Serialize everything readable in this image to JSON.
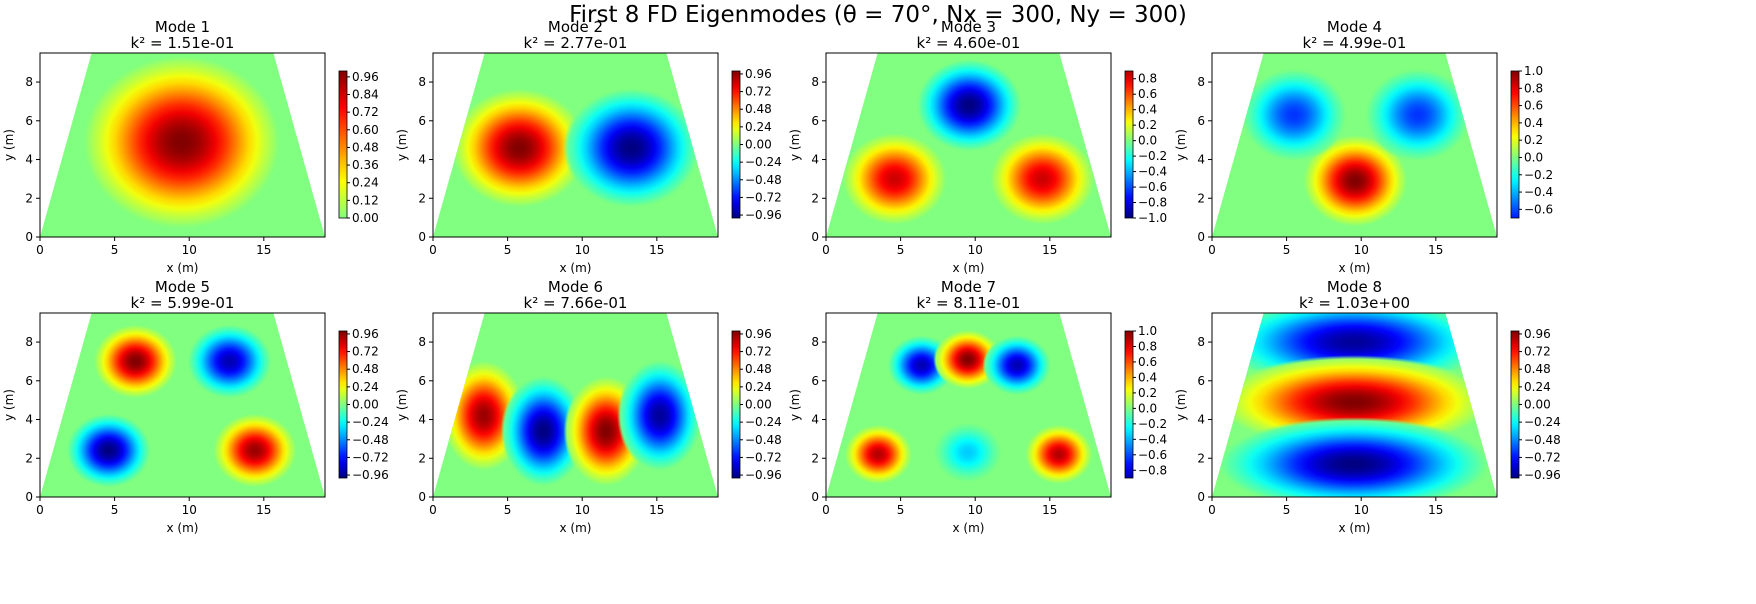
{
  "figure": {
    "suptitle": "First 8 FD Eigenmodes (θ = 70°, Nx = 300, Ny = 300)"
  },
  "chart_data": [
    {
      "type": "heatmap",
      "title": "Mode 1",
      "subtitle": "k² = 1.51e-01",
      "xlabel": "x (m)",
      "ylabel": "y (m)",
      "xlim": [
        0,
        19.1
      ],
      "ylim": [
        0,
        9.5
      ],
      "xticks": [
        "0",
        "5",
        "10",
        "15"
      ],
      "yticks": [
        "0",
        "2",
        "4",
        "6",
        "8"
      ],
      "colormap": "jet",
      "clim": [
        -1,
        1
      ],
      "colorbar_range": [
        0.0,
        1.0
      ],
      "colorbar_ticks": [
        "0.00",
        "0.12",
        "0.24",
        "0.36",
        "0.48",
        "0.60",
        "0.72",
        "0.84",
        "0.96"
      ],
      "domain": {
        "shape": "trapezoid",
        "bottom_width": 19.1,
        "top_left_x": 3.46,
        "top_right_x": 15.64
      },
      "extrema": [
        {
          "x": 9.5,
          "y": 4.9,
          "value": 1.0
        }
      ]
    },
    {
      "type": "heatmap",
      "title": "Mode 2",
      "subtitle": "k² = 2.77e-01",
      "xlabel": "x (m)",
      "ylabel": "y (m)",
      "xlim": [
        0,
        19.1
      ],
      "ylim": [
        0,
        9.5
      ],
      "xticks": [
        "0",
        "5",
        "10",
        "15"
      ],
      "yticks": [
        "0",
        "2",
        "4",
        "6",
        "8"
      ],
      "colormap": "jet",
      "clim": [
        -1,
        1
      ],
      "colorbar_range": [
        -1.0,
        1.0
      ],
      "colorbar_ticks": [
        "−0.96",
        "−0.72",
        "−0.48",
        "−0.24",
        "0.00",
        "0.24",
        "0.48",
        "0.72",
        "0.96"
      ],
      "domain": {
        "shape": "trapezoid",
        "bottom_width": 19.1,
        "top_left_x": 3.46,
        "top_right_x": 15.64
      },
      "extrema": [
        {
          "x": 5.8,
          "y": 4.6,
          "value": 1.0
        },
        {
          "x": 13.3,
          "y": 4.6,
          "value": -1.0
        }
      ]
    },
    {
      "type": "heatmap",
      "title": "Mode 3",
      "subtitle": "k² = 4.60e-01",
      "xlabel": "x (m)",
      "ylabel": "y (m)",
      "xlim": [
        0,
        19.1
      ],
      "ylim": [
        0,
        9.5
      ],
      "xticks": [
        "0",
        "5",
        "10",
        "15"
      ],
      "yticks": [
        "0",
        "2",
        "4",
        "6",
        "8"
      ],
      "colormap": "jet",
      "clim": [
        -1,
        1
      ],
      "colorbar_range": [
        -1.0,
        0.9
      ],
      "colorbar_ticks": [
        "−1.0",
        "−0.8",
        "−0.6",
        "−0.4",
        "−0.2",
        "0.0",
        "0.2",
        "0.4",
        "0.6",
        "0.8"
      ],
      "domain": {
        "shape": "trapezoid",
        "bottom_width": 19.1,
        "top_left_x": 3.46,
        "top_right_x": 15.64
      },
      "extrema": [
        {
          "x": 4.6,
          "y": 3.0,
          "value": 0.85
        },
        {
          "x": 14.5,
          "y": 3.0,
          "value": 0.85
        },
        {
          "x": 9.6,
          "y": 6.8,
          "value": -1.0
        }
      ]
    },
    {
      "type": "heatmap",
      "title": "Mode 4",
      "subtitle": "k² = 4.99e-01",
      "xlabel": "x (m)",
      "ylabel": "y (m)",
      "xlim": [
        0,
        19.1
      ],
      "ylim": [
        0,
        9.5
      ],
      "xticks": [
        "0",
        "5",
        "10",
        "15"
      ],
      "yticks": [
        "0",
        "2",
        "4",
        "6",
        "8"
      ],
      "colormap": "jet",
      "clim": [
        -1,
        1
      ],
      "colorbar_range": [
        -0.7,
        1.0
      ],
      "colorbar_ticks": [
        "−0.6",
        "−0.4",
        "−0.2",
        "0.0",
        "0.2",
        "0.4",
        "0.6",
        "0.8",
        "1.0"
      ],
      "domain": {
        "shape": "trapezoid",
        "bottom_width": 19.1,
        "top_left_x": 3.46,
        "top_right_x": 15.64
      },
      "extrema": [
        {
          "x": 9.6,
          "y": 2.9,
          "value": 1.0
        },
        {
          "x": 5.5,
          "y": 6.3,
          "value": -0.65
        },
        {
          "x": 13.8,
          "y": 6.3,
          "value": -0.65
        }
      ]
    },
    {
      "type": "heatmap",
      "title": "Mode 5",
      "subtitle": "k² = 5.99e-01",
      "xlabel": "x (m)",
      "ylabel": "y (m)",
      "xlim": [
        0,
        19.1
      ],
      "ylim": [
        0,
        9.5
      ],
      "xticks": [
        "0",
        "5",
        "10",
        "15"
      ],
      "yticks": [
        "0",
        "2",
        "4",
        "6",
        "8"
      ],
      "colormap": "jet",
      "clim": [
        -1,
        1
      ],
      "colorbar_range": [
        -1.0,
        1.0
      ],
      "colorbar_ticks": [
        "−0.96",
        "−0.72",
        "−0.48",
        "−0.24",
        "0.00",
        "0.24",
        "0.48",
        "0.72",
        "0.96"
      ],
      "domain": {
        "shape": "trapezoid",
        "bottom_width": 19.1,
        "top_left_x": 3.46,
        "top_right_x": 15.64
      },
      "extrema": [
        {
          "x": 6.4,
          "y": 7.0,
          "value": 1.0
        },
        {
          "x": 12.7,
          "y": 7.0,
          "value": -0.9
        },
        {
          "x": 4.6,
          "y": 2.4,
          "value": -1.0
        },
        {
          "x": 14.4,
          "y": 2.4,
          "value": 0.95
        }
      ]
    },
    {
      "type": "heatmap",
      "title": "Mode 6",
      "subtitle": "k² = 7.66e-01",
      "xlabel": "x (m)",
      "ylabel": "y (m)",
      "xlim": [
        0,
        19.1
      ],
      "ylim": [
        0,
        9.5
      ],
      "xticks": [
        "0",
        "5",
        "10",
        "15"
      ],
      "yticks": [
        "0",
        "2",
        "4",
        "6",
        "8"
      ],
      "colormap": "jet",
      "clim": [
        -1,
        1
      ],
      "colorbar_range": [
        -1.0,
        1.0
      ],
      "colorbar_ticks": [
        "−0.96",
        "−0.72",
        "−0.48",
        "−0.24",
        "0.00",
        "0.24",
        "0.48",
        "0.72",
        "0.96"
      ],
      "domain": {
        "shape": "trapezoid",
        "bottom_width": 19.1,
        "top_left_x": 3.46,
        "top_right_x": 15.64
      },
      "extrema": [
        {
          "x": 3.4,
          "y": 4.2,
          "value": 0.95
        },
        {
          "x": 7.4,
          "y": 3.4,
          "value": -1.0
        },
        {
          "x": 11.6,
          "y": 3.4,
          "value": 1.0
        },
        {
          "x": 15.2,
          "y": 4.2,
          "value": -0.95
        }
      ]
    },
    {
      "type": "heatmap",
      "title": "Mode 7",
      "subtitle": "k² = 8.11e-01",
      "xlabel": "x (m)",
      "ylabel": "y (m)",
      "xlim": [
        0,
        19.1
      ],
      "ylim": [
        0,
        9.5
      ],
      "xticks": [
        "0",
        "5",
        "10",
        "15"
      ],
      "yticks": [
        "0",
        "2",
        "4",
        "6",
        "8"
      ],
      "colormap": "jet",
      "clim": [
        -1,
        1
      ],
      "colorbar_range": [
        -0.9,
        1.0
      ],
      "colorbar_ticks": [
        "−0.8",
        "−0.6",
        "−0.4",
        "−0.2",
        "0.0",
        "0.2",
        "0.4",
        "0.6",
        "0.8",
        "1.0"
      ],
      "domain": {
        "shape": "trapezoid",
        "bottom_width": 19.1,
        "top_left_x": 3.46,
        "top_right_x": 15.64
      },
      "extrema": [
        {
          "x": 6.4,
          "y": 6.8,
          "value": -0.9
        },
        {
          "x": 9.5,
          "y": 7.1,
          "value": 1.0
        },
        {
          "x": 12.8,
          "y": 6.8,
          "value": -0.9
        },
        {
          "x": 3.5,
          "y": 2.2,
          "value": 0.9
        },
        {
          "x": 9.5,
          "y": 2.3,
          "value": -0.35
        },
        {
          "x": 15.6,
          "y": 2.2,
          "value": 0.9
        }
      ]
    },
    {
      "type": "heatmap",
      "title": "Mode 8",
      "subtitle": "k² = 1.03e+00",
      "xlabel": "x (m)",
      "ylabel": "y (m)",
      "xlim": [
        0,
        19.1
      ],
      "ylim": [
        0,
        9.5
      ],
      "xticks": [
        "0",
        "5",
        "10",
        "15"
      ],
      "yticks": [
        "0",
        "2",
        "4",
        "6",
        "8"
      ],
      "colormap": "jet",
      "clim": [
        -1,
        1
      ],
      "colorbar_range": [
        -1.0,
        1.0
      ],
      "colorbar_ticks": [
        "−0.96",
        "−0.72",
        "−0.48",
        "−0.24",
        "0.00",
        "0.24",
        "0.48",
        "0.72",
        "0.96"
      ],
      "domain": {
        "shape": "trapezoid",
        "bottom_width": 19.1,
        "top_left_x": 3.46,
        "top_right_x": 15.64
      },
      "extrema": [
        {
          "x": 9.5,
          "y": 8.0,
          "value": -0.95
        },
        {
          "x": 9.5,
          "y": 4.9,
          "value": 1.0
        },
        {
          "x": 9.5,
          "y": 1.7,
          "value": -1.0
        }
      ]
    }
  ]
}
